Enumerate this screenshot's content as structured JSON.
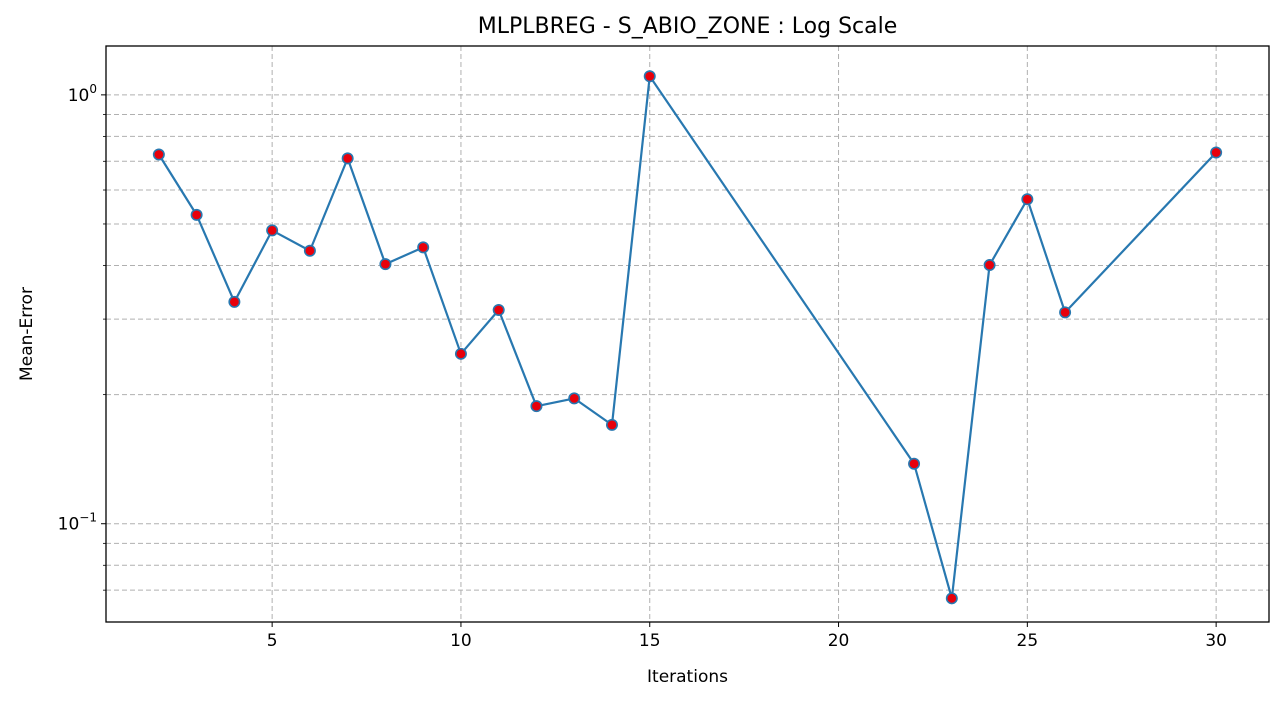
{
  "chart_data": {
    "type": "line",
    "title": "MLPLBREG - S_ABIO_ZONE : Log Scale",
    "xlabel": "Iterations",
    "ylabel": "Mean-Error",
    "yscale": "log",
    "xlim": [
      0.6,
      31.4
    ],
    "ylim": [
      0.059,
      1.3
    ],
    "x_ticks": [
      5,
      10,
      15,
      20,
      25,
      30
    ],
    "y_major_ticks": [
      {
        "value": 0.1,
        "base": "10",
        "exp": "−1"
      },
      {
        "value": 1,
        "base": "10",
        "exp": "0"
      }
    ],
    "y_minor_ticks": [
      0.07,
      0.08,
      0.09,
      0.2,
      0.3,
      0.4,
      0.5,
      0.6,
      0.7,
      0.8,
      0.9
    ],
    "grid": true,
    "grid_style": "dashed",
    "line_color": "#2878b0",
    "marker_color": "#e8000b",
    "series": [
      {
        "x": [
          2,
          3,
          4,
          5,
          6,
          7,
          8,
          9,
          10,
          11,
          12,
          13,
          14,
          15,
          22,
          23,
          24,
          25,
          26,
          30
        ],
        "y": [
          0.726,
          0.525,
          0.329,
          0.483,
          0.433,
          0.711,
          0.403,
          0.441,
          0.249,
          0.315,
          0.188,
          0.196,
          0.17,
          1.105,
          0.138,
          0.067,
          0.401,
          0.571,
          0.311,
          0.734
        ]
      }
    ]
  }
}
